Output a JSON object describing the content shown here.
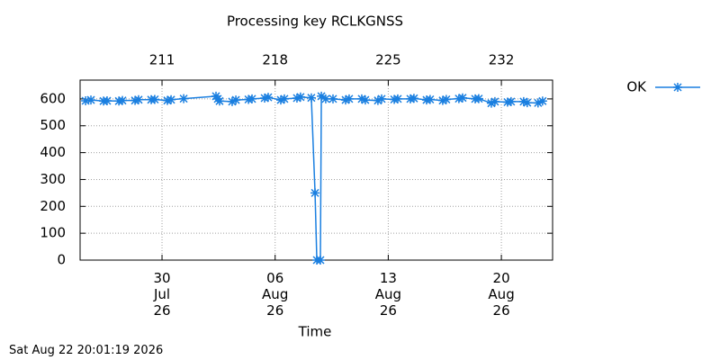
{
  "chart_data": {
    "type": "line",
    "title": "Processing key RCLKGNSS",
    "xlabel": "Time",
    "timestamp": "Sat Aug 22 20:01:19 2026",
    "xlim": [
      205.93,
      235.17
    ],
    "ylim": [
      0,
      670
    ],
    "yticks": [
      0,
      100,
      200,
      300,
      400,
      500,
      600
    ],
    "xticks": [
      {
        "value": 211,
        "label": "30\nJul\n26"
      },
      {
        "value": 218,
        "label": "06\nAug\n26"
      },
      {
        "value": 225,
        "label": "13\nAug\n26"
      },
      {
        "value": 232,
        "label": "20\nAug\n26"
      }
    ],
    "x2ticks": [
      211,
      218,
      225,
      232
    ],
    "grid": true,
    "legend": "right",
    "series": [
      {
        "name": "OK",
        "color": "#1a7fe0",
        "x": [
          206.27,
          206.6,
          207.38,
          207.6,
          208.33,
          208.55,
          209.33,
          209.55,
          210.33,
          210.55,
          211.33,
          211.56,
          212.34,
          214.34,
          214.45,
          214.56,
          215.34,
          215.57,
          216.35,
          216.57,
          217.35,
          217.57,
          218.35,
          218.57,
          219.35,
          219.57,
          220.24,
          220.47,
          220.58,
          220.8,
          220.86,
          221.13,
          221.58,
          222.36,
          222.58,
          223.36,
          223.58,
          224.36,
          224.59,
          225.37,
          225.59,
          226.37,
          226.59,
          227.37,
          227.59,
          228.37,
          228.59,
          229.37,
          229.6,
          230.38,
          230.6,
          231.38,
          231.6,
          232.38,
          232.6,
          233.38,
          233.6,
          234.27,
          234.55
        ],
        "values": [
          593,
          596,
          592,
          593,
          592,
          594,
          594,
          597,
          597,
          598,
          594,
          597,
          601,
          610,
          600,
          592,
          590,
          596,
          598,
          600,
          603,
          606,
          596,
          600,
          603,
          607,
          604,
          250,
          0,
          0,
          610,
          600,
          600,
          596,
          600,
          600,
          596,
          594,
          600,
          598,
          600,
          600,
          602,
          596,
          598,
          594,
          598,
          601,
          604,
          600,
          601,
          584,
          590,
          588,
          590,
          590,
          586,
          585,
          592
        ]
      }
    ]
  }
}
